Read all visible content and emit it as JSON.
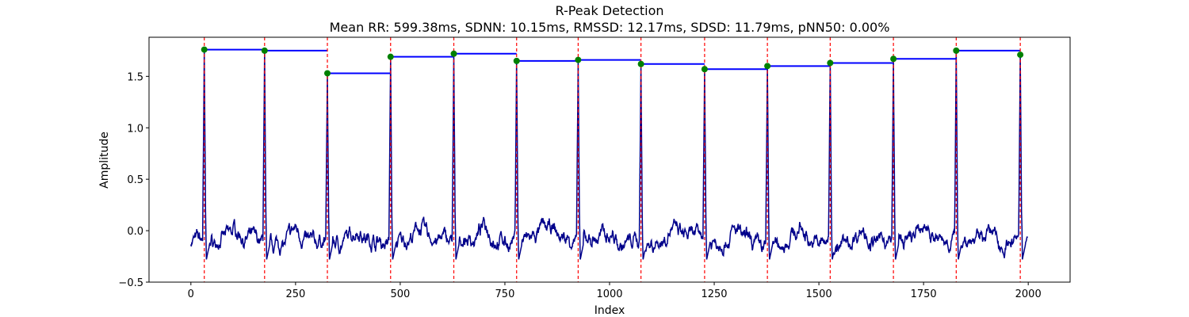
{
  "chart_data": {
    "type": "line",
    "title": "R-Peak Detection",
    "subtitle": "Mean RR: 599.38ms, SDNN: 10.15ms, RMSSD: 12.17ms, SDSD: 11.79ms, pNN50: 0.00%",
    "xlabel": "Index",
    "ylabel": "Amplitude",
    "xlim": [
      -100,
      2100
    ],
    "ylim": [
      -0.5,
      1.88
    ],
    "xticks": [
      0,
      250,
      500,
      750,
      1000,
      1250,
      1500,
      1750,
      2000
    ],
    "xtick_labels": [
      "0",
      "250",
      "500",
      "750",
      "1000",
      "1250",
      "1500",
      "1750",
      "2000"
    ],
    "yticks": [
      -0.5,
      0.0,
      0.5,
      1.0,
      1.5
    ],
    "ytick_labels": [
      "−0.5",
      "0.0",
      "0.5",
      "1.0",
      "1.5"
    ],
    "grid": false,
    "signal_color": "#00008b",
    "peak_line_color": "#ff0000",
    "hold_line_color": "#0000ff",
    "peak_marker_color": "#008000",
    "x_start": 0,
    "x_end": 1999,
    "peaks": [
      {
        "x": 32,
        "y": 1.76
      },
      {
        "x": 176,
        "y": 1.75
      },
      {
        "x": 326,
        "y": 1.53
      },
      {
        "x": 477,
        "y": 1.69
      },
      {
        "x": 628,
        "y": 1.72
      },
      {
        "x": 778,
        "y": 1.65
      },
      {
        "x": 925,
        "y": 1.66
      },
      {
        "x": 1075,
        "y": 1.62
      },
      {
        "x": 1227,
        "y": 1.57
      },
      {
        "x": 1377,
        "y": 1.6
      },
      {
        "x": 1527,
        "y": 1.63
      },
      {
        "x": 1678,
        "y": 1.67
      },
      {
        "x": 1828,
        "y": 1.75
      },
      {
        "x": 1981,
        "y": 1.71
      }
    ]
  }
}
